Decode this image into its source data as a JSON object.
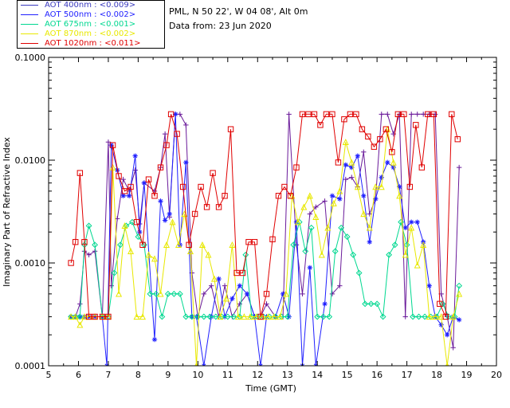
{
  "header": {
    "site": "PML, N 50 22', W 04 08', Alt 0m",
    "date": "Data from: 23 Jun 2020"
  },
  "legend": [
    {
      "label": "AOT  400nm : <0.009>",
      "color": "#3b3bbf"
    },
    {
      "label": "AOT  500nm : <0.002>",
      "color": "#2020ff"
    },
    {
      "label": "AOT  675nm : <0.001>",
      "color": "#00d890"
    },
    {
      "label": "AOT  870nm : <0.002>",
      "color": "#e8e800"
    },
    {
      "label": "AOT 1020nm : <0.011>",
      "color": "#e00000"
    }
  ],
  "chart_data": {
    "type": "line",
    "xlabel": "Time (GMT)",
    "ylabel": "Imaginary Part of Refractive Index",
    "xlim": [
      5,
      20
    ],
    "ylim": [
      0.0001,
      0.1
    ],
    "yscale": "log",
    "xticks": [
      5,
      6,
      7,
      8,
      9,
      10,
      11,
      12,
      13,
      14,
      15,
      16,
      17,
      18,
      19,
      20
    ],
    "yticks": [
      {
        "value": 0.0001,
        "label": "0.0001"
      },
      {
        "value": 0.001,
        "label": "0.0010"
      },
      {
        "value": 0.01,
        "label": "0.0100"
      },
      {
        "value": 0.1,
        "label": "0.1000"
      }
    ],
    "series": [
      {
        "name": "AOT 400nm",
        "color": "#6a1a9a",
        "marker": "plus",
        "x": [
          5.75,
          5.9,
          6.05,
          6.2,
          6.35,
          6.55,
          6.8,
          7.0,
          7.1,
          7.3,
          7.5,
          7.7,
          7.9,
          8.05,
          8.2,
          8.55,
          8.75,
          8.9,
          9.05,
          9.25,
          9.4,
          9.6,
          9.8,
          10.0,
          10.2,
          10.45,
          10.7,
          10.9,
          11.15,
          11.4,
          11.65,
          11.9,
          12.1,
          12.3,
          12.6,
          12.85,
          13.05,
          13.3,
          13.5,
          13.75,
          13.95,
          14.25,
          14.5,
          14.75,
          14.95,
          15.15,
          15.35,
          15.55,
          15.75,
          15.95,
          16.15,
          16.35,
          16.55,
          16.75,
          16.95,
          17.15,
          17.35,
          17.55,
          17.75,
          17.95,
          18.15,
          18.35,
          18.55,
          18.75
        ],
        "y": [
          0.0003,
          0.0003,
          0.0004,
          0.0013,
          0.0012,
          0.0013,
          0.0003,
          0.015,
          0.0006,
          0.0027,
          0.0065,
          0.005,
          0.008,
          0.0024,
          0.006,
          0.005,
          0.0085,
          0.018,
          0.0028,
          0.028,
          0.028,
          0.022,
          0.0008,
          0.0003,
          0.0005,
          0.0006,
          0.0003,
          0.0006,
          0.0003,
          0.0004,
          0.0005,
          0.0003,
          0.0003,
          0.0004,
          0.0003,
          0.0003,
          0.028,
          0.0015,
          0.0005,
          0.003,
          0.0035,
          0.004,
          0.0005,
          0.0006,
          0.0065,
          0.0068,
          0.0055,
          0.012,
          0.003,
          0.0042,
          0.028,
          0.028,
          0.018,
          0.028,
          0.0003,
          0.028,
          0.028,
          0.028,
          0.028,
          0.028,
          0.0005,
          0.0003,
          0.00015,
          0.0085
        ]
      },
      {
        "name": "AOT 500nm",
        "color": "#2020ff",
        "marker": "star",
        "x": [
          5.75,
          5.9,
          6.05,
          6.2,
          6.35,
          6.55,
          6.8,
          6.95,
          7.1,
          7.3,
          7.5,
          7.7,
          7.9,
          8.05,
          8.2,
          8.55,
          8.75,
          8.9,
          9.05,
          9.25,
          9.4,
          9.6,
          9.8,
          9.95,
          10.2,
          10.45,
          10.7,
          10.9,
          11.15,
          11.4,
          11.65,
          11.9,
          12.1,
          12.3,
          12.6,
          12.85,
          13.05,
          13.3,
          13.5,
          13.75,
          13.95,
          14.25,
          14.5,
          14.75,
          14.95,
          15.15,
          15.35,
          15.55,
          15.75,
          15.95,
          16.15,
          16.35,
          16.55,
          16.75,
          16.95,
          17.15,
          17.35,
          17.55,
          17.75,
          17.95,
          18.15,
          18.35,
          18.55,
          18.75
        ],
        "y": [
          0.0003,
          0.0003,
          0.0003,
          0.0003,
          0.0003,
          0.0003,
          0.0003,
          0.0001,
          0.014,
          0.008,
          0.0045,
          0.0045,
          0.011,
          0.002,
          0.006,
          0.00018,
          0.004,
          0.0026,
          0.003,
          0.028,
          0.0015,
          0.0095,
          0.0003,
          0.0003,
          0.0001,
          0.0003,
          0.0007,
          0.0003,
          0.00045,
          0.0006,
          0.0005,
          0.0003,
          0.0001,
          0.0003,
          0.0003,
          0.0005,
          0.0003,
          0.0025,
          0.0001,
          0.0009,
          0.0001,
          0.0004,
          0.0045,
          0.0042,
          0.009,
          0.0085,
          0.011,
          0.0045,
          0.0016,
          0.0042,
          0.0068,
          0.0095,
          0.0085,
          0.0055,
          0.0022,
          0.0025,
          0.0025,
          0.0016,
          0.0006,
          0.0003,
          0.00025,
          0.0002,
          0.0003,
          0.00028
        ]
      },
      {
        "name": "AOT 675nm",
        "color": "#00d890",
        "marker": "diamond",
        "x": [
          5.75,
          5.9,
          6.05,
          6.2,
          6.35,
          6.55,
          6.8,
          7.0,
          7.2,
          7.4,
          7.6,
          7.8,
          8.0,
          8.2,
          8.4,
          8.6,
          8.8,
          9.0,
          9.2,
          9.4,
          9.6,
          9.8,
          10.0,
          10.2,
          10.4,
          10.6,
          10.8,
          11.0,
          11.2,
          11.4,
          11.6,
          11.8,
          12.0,
          12.2,
          12.4,
          12.6,
          12.8,
          13.0,
          13.2,
          13.4,
          13.6,
          13.8,
          14.0,
          14.2,
          14.4,
          14.6,
          14.8,
          15.0,
          15.2,
          15.4,
          15.6,
          15.8,
          16.0,
          16.2,
          16.4,
          16.6,
          16.8,
          17.0,
          17.2,
          17.4,
          17.6,
          17.8,
          18.0,
          18.2,
          18.4,
          18.6,
          18.75
        ],
        "y": [
          0.0003,
          0.0003,
          0.0003,
          0.0015,
          0.0023,
          0.0015,
          0.0003,
          0.0003,
          0.0008,
          0.0015,
          0.0023,
          0.0025,
          0.0018,
          0.0015,
          0.0005,
          0.0005,
          0.0003,
          0.0005,
          0.0005,
          0.0005,
          0.0003,
          0.0003,
          0.0003,
          0.0003,
          0.0003,
          0.0003,
          0.0003,
          0.0003,
          0.0003,
          0.0003,
          0.0012,
          0.0003,
          0.0003,
          0.0003,
          0.0003,
          0.0003,
          0.0003,
          0.0003,
          0.0015,
          0.0025,
          0.0013,
          0.0022,
          0.0003,
          0.0003,
          0.0003,
          0.0013,
          0.0022,
          0.0018,
          0.0012,
          0.0008,
          0.0004,
          0.0004,
          0.0004,
          0.0003,
          0.0012,
          0.0015,
          0.0025,
          0.0015,
          0.0003,
          0.0003,
          0.0003,
          0.0003,
          0.0003,
          0.0004,
          0.0003,
          0.0003,
          0.0006
        ]
      },
      {
        "name": "AOT 870nm",
        "color": "#e8e800",
        "marker": "triangle",
        "x": [
          5.75,
          5.9,
          6.05,
          6.2,
          6.35,
          6.55,
          6.8,
          7.0,
          7.15,
          7.35,
          7.55,
          7.75,
          7.95,
          8.15,
          8.35,
          8.55,
          8.75,
          8.95,
          9.15,
          9.35,
          9.55,
          9.75,
          9.95,
          10.15,
          10.35,
          10.55,
          10.75,
          10.95,
          11.15,
          11.35,
          11.55,
          11.75,
          11.95,
          12.15,
          12.35,
          12.55,
          12.75,
          12.95,
          13.15,
          13.35,
          13.55,
          13.75,
          13.95,
          14.15,
          14.35,
          14.55,
          14.75,
          14.95,
          15.15,
          15.35,
          15.55,
          15.75,
          15.95,
          16.15,
          16.35,
          16.55,
          16.75,
          16.95,
          17.15,
          17.35,
          17.55,
          17.75,
          17.95,
          18.15,
          18.35,
          18.55,
          18.75
        ],
        "y": [
          0.0003,
          0.0003,
          0.00025,
          0.0003,
          0.0003,
          0.0003,
          0.0003,
          0.0003,
          0.0085,
          0.0005,
          0.0023,
          0.0013,
          0.0003,
          0.0003,
          0.0012,
          0.0011,
          0.0005,
          0.0015,
          0.0025,
          0.0015,
          0.003,
          0.0013,
          0.0001,
          0.0015,
          0.0012,
          0.0007,
          0.0003,
          0.00045,
          0.0015,
          0.0003,
          0.0003,
          0.0003,
          0.0003,
          0.0003,
          0.0003,
          0.0003,
          0.0003,
          0.0005,
          0.0045,
          0.0025,
          0.0035,
          0.0045,
          0.0028,
          0.0012,
          0.0022,
          0.0038,
          0.005,
          0.015,
          0.0095,
          0.0055,
          0.003,
          0.0022,
          0.0055,
          0.0055,
          0.02,
          0.0095,
          0.0045,
          0.0012,
          0.0022,
          0.00095,
          0.0015,
          0.0003,
          0.0003,
          0.0003,
          0.0001,
          0.0003,
          0.0005
        ]
      },
      {
        "name": "AOT 1020nm",
        "color": "#e00000",
        "marker": "square",
        "x": [
          5.75,
          5.9,
          6.05,
          6.2,
          6.35,
          6.55,
          6.8,
          7.0,
          7.15,
          7.35,
          7.55,
          7.75,
          7.95,
          8.15,
          8.35,
          8.55,
          8.75,
          8.95,
          9.1,
          9.3,
          9.5,
          9.7,
          9.9,
          10.1,
          10.3,
          10.5,
          10.7,
          10.9,
          11.1,
          11.3,
          11.5,
          11.7,
          11.9,
          12.1,
          12.3,
          12.5,
          12.7,
          12.9,
          13.1,
          13.3,
          13.5,
          13.7,
          13.9,
          14.1,
          14.3,
          14.5,
          14.7,
          14.9,
          15.1,
          15.3,
          15.5,
          15.7,
          15.9,
          16.1,
          16.3,
          16.5,
          16.7,
          16.9,
          17.1,
          17.3,
          17.5,
          17.7,
          17.9,
          18.1,
          18.3,
          18.5,
          18.7
        ],
        "y": [
          0.001,
          0.0016,
          0.0075,
          0.0016,
          0.0003,
          0.0003,
          0.0003,
          0.0003,
          0.014,
          0.007,
          0.005,
          0.0055,
          0.0025,
          0.0015,
          0.0065,
          0.0045,
          0.0085,
          0.014,
          0.028,
          0.018,
          0.0055,
          0.0015,
          0.003,
          0.0055,
          0.0035,
          0.0075,
          0.0035,
          0.0045,
          0.02,
          0.0008,
          0.0008,
          0.0016,
          0.0016,
          0.0003,
          0.0005,
          0.0017,
          0.0045,
          0.0055,
          0.0045,
          0.0085,
          0.028,
          0.028,
          0.028,
          0.022,
          0.028,
          0.028,
          0.0095,
          0.025,
          0.028,
          0.028,
          0.02,
          0.017,
          0.0135,
          0.016,
          0.02,
          0.012,
          0.028,
          0.028,
          0.0055,
          0.022,
          0.0085,
          0.028,
          0.028,
          0.0004,
          0.0003,
          0.028,
          0.016
        ]
      }
    ]
  }
}
